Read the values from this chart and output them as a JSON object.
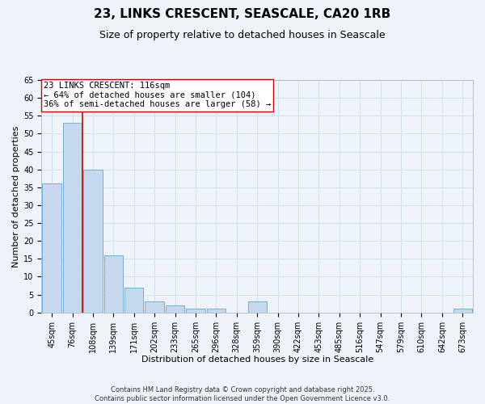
{
  "title": "23, LINKS CRESCENT, SEASCALE, CA20 1RB",
  "subtitle": "Size of property relative to detached houses in Seascale",
  "xlabel": "Distribution of detached houses by size in Seascale",
  "ylabel": "Number of detached properties",
  "categories": [
    "45sqm",
    "76sqm",
    "108sqm",
    "139sqm",
    "171sqm",
    "202sqm",
    "233sqm",
    "265sqm",
    "296sqm",
    "328sqm",
    "359sqm",
    "390sqm",
    "422sqm",
    "453sqm",
    "485sqm",
    "516sqm",
    "547sqm",
    "579sqm",
    "610sqm",
    "642sqm",
    "673sqm"
  ],
  "values": [
    36,
    53,
    40,
    16,
    7,
    3,
    2,
    1,
    1,
    0,
    3,
    0,
    0,
    0,
    0,
    0,
    0,
    0,
    0,
    0,
    1
  ],
  "bar_color": "#c5d8ee",
  "bar_edge_color": "#7aadd4",
  "grid_color": "#d0dff0",
  "bg_color": "#eef3fa",
  "vline_x": 1.5,
  "vline_color": "#cc0000",
  "annotation_text": "23 LINKS CRESCENT: 116sqm\n← 64% of detached houses are smaller (104)\n36% of semi-detached houses are larger (58) →",
  "annotation_box_color": "#ffffff",
  "annotation_border_color": "#cc0000",
  "ylim": [
    0,
    65
  ],
  "yticks": [
    0,
    5,
    10,
    15,
    20,
    25,
    30,
    35,
    40,
    45,
    50,
    55,
    60,
    65
  ],
  "footer": "Contains HM Land Registry data © Crown copyright and database right 2025.\nContains public sector information licensed under the Open Government Licence v3.0.",
  "title_fontsize": 11,
  "subtitle_fontsize": 9,
  "axis_label_fontsize": 8,
  "tick_fontsize": 7,
  "annotation_fontsize": 7.5
}
